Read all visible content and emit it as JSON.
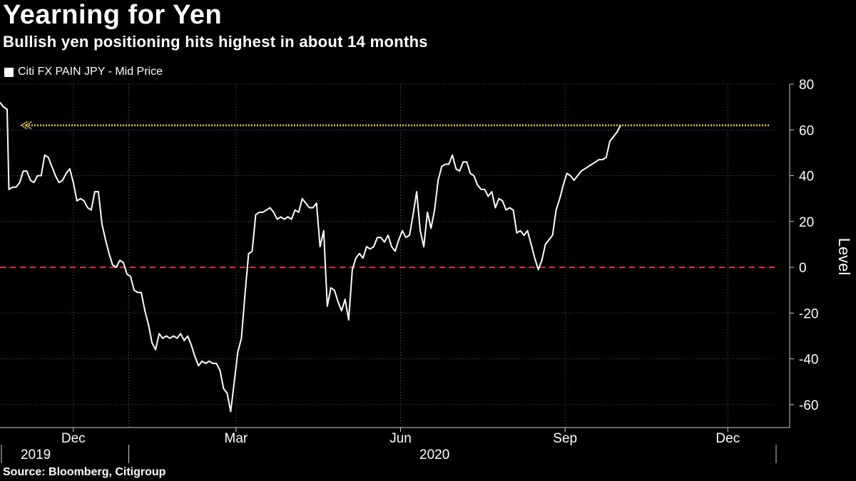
{
  "chart_data": {
    "type": "line",
    "title": "Yearning for Yen",
    "subtitle": "Bullish yen positioning hits highest in about 14 months",
    "ylabel": "Level",
    "source": "Source: Bloomberg, Citigroup",
    "ylim": [
      -70,
      80
    ],
    "yticks": [
      80,
      60,
      40,
      20,
      0,
      -20,
      -40,
      -60
    ],
    "x_tick_labels": [
      {
        "label": "Dec",
        "date": "2019-12-01"
      },
      {
        "label": "Mar",
        "date": "2020-03-01"
      },
      {
        "label": "Jun",
        "date": "2020-06-01"
      },
      {
        "label": "Sep",
        "date": "2020-09-01"
      },
      {
        "label": "Dec",
        "date": "2020-12-01"
      }
    ],
    "year_labels": [
      {
        "label": "2019",
        "date": "2019-11-10"
      },
      {
        "label": "2020",
        "date": "2020-06-20"
      }
    ],
    "x_range": [
      "2019-10-21",
      "2020-12-28"
    ],
    "grid": true,
    "legend_position": "top-left",
    "reference_lines": [
      {
        "value": 0,
        "color": "#e0323c",
        "style": "dashed"
      },
      {
        "value": 62,
        "color": "#e6c74a",
        "style": "dotted"
      }
    ],
    "series": [
      {
        "name": "Citi FX PAIN JPY - Mid Price",
        "color": "#ffffff",
        "points": [
          [
            "2019-10-21",
            72
          ],
          [
            "2019-10-23",
            70
          ],
          [
            "2019-10-25",
            69
          ],
          [
            "2019-10-26",
            34
          ],
          [
            "2019-10-28",
            35
          ],
          [
            "2019-10-30",
            35
          ],
          [
            "2019-11-01",
            37
          ],
          [
            "2019-11-03",
            42
          ],
          [
            "2019-11-05",
            42
          ],
          [
            "2019-11-07",
            38
          ],
          [
            "2019-11-09",
            37
          ],
          [
            "2019-11-11",
            40
          ],
          [
            "2019-11-13",
            40
          ],
          [
            "2019-11-15",
            49
          ],
          [
            "2019-11-17",
            48
          ],
          [
            "2019-11-19",
            44
          ],
          [
            "2019-11-21",
            40
          ],
          [
            "2019-11-23",
            37
          ],
          [
            "2019-11-25",
            38
          ],
          [
            "2019-11-27",
            41
          ],
          [
            "2019-11-29",
            43
          ],
          [
            "2019-12-01",
            37
          ],
          [
            "2019-12-03",
            29
          ],
          [
            "2019-12-05",
            30
          ],
          [
            "2019-12-07",
            29
          ],
          [
            "2019-12-09",
            26
          ],
          [
            "2019-12-11",
            25
          ],
          [
            "2019-12-13",
            33
          ],
          [
            "2019-12-15",
            33
          ],
          [
            "2019-12-17",
            19
          ],
          [
            "2019-12-19",
            12
          ],
          [
            "2019-12-21",
            6
          ],
          [
            "2019-12-23",
            1
          ],
          [
            "2019-12-25",
            0
          ],
          [
            "2019-12-27",
            3
          ],
          [
            "2019-12-29",
            2
          ],
          [
            "2019-12-31",
            -3
          ],
          [
            "2020-01-02",
            -4
          ],
          [
            "2020-01-04",
            -10
          ],
          [
            "2020-01-06",
            -11
          ],
          [
            "2020-01-08",
            -11
          ],
          [
            "2020-01-10",
            -19
          ],
          [
            "2020-01-12",
            -25
          ],
          [
            "2020-01-14",
            -33
          ],
          [
            "2020-01-16",
            -36
          ],
          [
            "2020-01-18",
            -29
          ],
          [
            "2020-01-20",
            -31
          ],
          [
            "2020-01-22",
            -30
          ],
          [
            "2020-01-24",
            -31
          ],
          [
            "2020-01-26",
            -30
          ],
          [
            "2020-01-28",
            -31
          ],
          [
            "2020-01-30",
            -29
          ],
          [
            "2020-02-01",
            -32
          ],
          [
            "2020-02-03",
            -30
          ],
          [
            "2020-02-05",
            -34
          ],
          [
            "2020-02-07",
            -39
          ],
          [
            "2020-02-09",
            -43
          ],
          [
            "2020-02-11",
            -41
          ],
          [
            "2020-02-13",
            -42
          ],
          [
            "2020-02-15",
            -41
          ],
          [
            "2020-02-17",
            -42
          ],
          [
            "2020-02-19",
            -42
          ],
          [
            "2020-02-21",
            -45
          ],
          [
            "2020-02-23",
            -53
          ],
          [
            "2020-02-25",
            -55
          ],
          [
            "2020-02-27",
            -63
          ],
          [
            "2020-02-29",
            -50
          ],
          [
            "2020-03-02",
            -37
          ],
          [
            "2020-03-04",
            -31
          ],
          [
            "2020-03-06",
            -12
          ],
          [
            "2020-03-08",
            6
          ],
          [
            "2020-03-10",
            7
          ],
          [
            "2020-03-12",
            23
          ],
          [
            "2020-03-14",
            24
          ],
          [
            "2020-03-16",
            24
          ],
          [
            "2020-03-18",
            25
          ],
          [
            "2020-03-20",
            26
          ],
          [
            "2020-03-22",
            24
          ],
          [
            "2020-03-24",
            21
          ],
          [
            "2020-03-26",
            22
          ],
          [
            "2020-03-28",
            21
          ],
          [
            "2020-03-30",
            22
          ],
          [
            "2020-04-01",
            21
          ],
          [
            "2020-04-03",
            25
          ],
          [
            "2020-04-05",
            24
          ],
          [
            "2020-04-07",
            30
          ],
          [
            "2020-04-09",
            28
          ],
          [
            "2020-04-11",
            26
          ],
          [
            "2020-04-13",
            26
          ],
          [
            "2020-04-15",
            28
          ],
          [
            "2020-04-17",
            9
          ],
          [
            "2020-04-19",
            16
          ],
          [
            "2020-04-21",
            -17
          ],
          [
            "2020-04-23",
            -9
          ],
          [
            "2020-04-25",
            -10
          ],
          [
            "2020-04-27",
            -15
          ],
          [
            "2020-04-29",
            -19
          ],
          [
            "2020-05-01",
            -14
          ],
          [
            "2020-05-03",
            -23
          ],
          [
            "2020-05-05",
            -1
          ],
          [
            "2020-05-07",
            4
          ],
          [
            "2020-05-09",
            6
          ],
          [
            "2020-05-11",
            4
          ],
          [
            "2020-05-13",
            9
          ],
          [
            "2020-05-15",
            8
          ],
          [
            "2020-05-17",
            9
          ],
          [
            "2020-05-19",
            13
          ],
          [
            "2020-05-21",
            13
          ],
          [
            "2020-05-23",
            11
          ],
          [
            "2020-05-25",
            14
          ],
          [
            "2020-05-27",
            9
          ],
          [
            "2020-05-29",
            7
          ],
          [
            "2020-05-31",
            12
          ],
          [
            "2020-06-02",
            16
          ],
          [
            "2020-06-04",
            13
          ],
          [
            "2020-06-06",
            14
          ],
          [
            "2020-06-08",
            23
          ],
          [
            "2020-06-10",
            33
          ],
          [
            "2020-06-12",
            16
          ],
          [
            "2020-06-14",
            9
          ],
          [
            "2020-06-16",
            24
          ],
          [
            "2020-06-18",
            17
          ],
          [
            "2020-06-20",
            25
          ],
          [
            "2020-06-22",
            38
          ],
          [
            "2020-06-24",
            44
          ],
          [
            "2020-06-26",
            45
          ],
          [
            "2020-06-28",
            45
          ],
          [
            "2020-06-30",
            49
          ],
          [
            "2020-07-02",
            43
          ],
          [
            "2020-07-04",
            42
          ],
          [
            "2020-07-06",
            46
          ],
          [
            "2020-07-08",
            46
          ],
          [
            "2020-07-10",
            41
          ],
          [
            "2020-07-12",
            40
          ],
          [
            "2020-07-14",
            36
          ],
          [
            "2020-07-16",
            34
          ],
          [
            "2020-07-18",
            34
          ],
          [
            "2020-07-20",
            31
          ],
          [
            "2020-07-22",
            33
          ],
          [
            "2020-07-24",
            26
          ],
          [
            "2020-07-26",
            30
          ],
          [
            "2020-07-28",
            29
          ],
          [
            "2020-07-30",
            25
          ],
          [
            "2020-08-01",
            26
          ],
          [
            "2020-08-03",
            25
          ],
          [
            "2020-08-05",
            15
          ],
          [
            "2020-08-07",
            16
          ],
          [
            "2020-08-09",
            14
          ],
          [
            "2020-08-11",
            16
          ],
          [
            "2020-08-13",
            10
          ],
          [
            "2020-08-15",
            4
          ],
          [
            "2020-08-17",
            -1
          ],
          [
            "2020-08-19",
            3
          ],
          [
            "2020-08-21",
            10
          ],
          [
            "2020-08-23",
            12
          ],
          [
            "2020-08-25",
            14
          ],
          [
            "2020-08-27",
            25
          ],
          [
            "2020-08-29",
            30
          ],
          [
            "2020-08-31",
            36
          ],
          [
            "2020-09-02",
            41
          ],
          [
            "2020-09-04",
            40
          ],
          [
            "2020-09-06",
            38
          ],
          [
            "2020-09-08",
            40
          ],
          [
            "2020-09-10",
            42
          ],
          [
            "2020-09-12",
            43
          ],
          [
            "2020-09-14",
            44
          ],
          [
            "2020-09-16",
            45
          ],
          [
            "2020-09-18",
            46
          ],
          [
            "2020-09-20",
            47
          ],
          [
            "2020-09-22",
            47
          ],
          [
            "2020-09-24",
            48
          ],
          [
            "2020-09-26",
            55
          ],
          [
            "2020-09-28",
            57
          ],
          [
            "2020-09-30",
            59
          ],
          [
            "2020-10-02",
            62
          ]
        ]
      }
    ]
  }
}
